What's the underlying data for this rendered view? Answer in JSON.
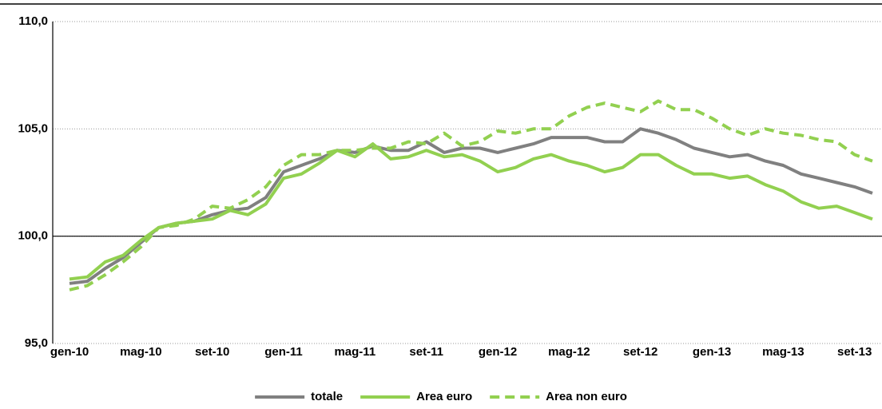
{
  "chart_data": {
    "type": "line",
    "categories": [
      "gen-10",
      null,
      null,
      null,
      "mag-10",
      null,
      null,
      null,
      "set-10",
      null,
      null,
      null,
      "gen-11",
      null,
      null,
      null,
      "mag-11",
      null,
      null,
      null,
      "set-11",
      null,
      null,
      null,
      "gen-12",
      null,
      null,
      null,
      "mag-12",
      null,
      null,
      null,
      "set-12",
      null,
      null,
      null,
      "gen-13",
      null,
      null,
      null,
      "mag-13",
      null,
      null,
      null,
      "set-13",
      null
    ],
    "series": [
      {
        "name": "totale",
        "color": "#808080",
        "dashed": false,
        "values": [
          97.8,
          97.9,
          98.5,
          99.0,
          99.7,
          100.4,
          100.6,
          100.7,
          101.0,
          101.2,
          101.3,
          101.8,
          103.0,
          103.3,
          103.6,
          104.0,
          103.9,
          104.2,
          104.0,
          104.0,
          104.4,
          103.9,
          104.1,
          104.1,
          103.9,
          104.1,
          104.3,
          104.6,
          104.6,
          104.6,
          104.4,
          104.4,
          105.0,
          104.8,
          104.5,
          104.1,
          103.9,
          103.7,
          103.8,
          103.5,
          103.3,
          102.9,
          102.7,
          102.5,
          102.3,
          102.0
        ]
      },
      {
        "name": "Area euro",
        "color": "#92d050",
        "dashed": false,
        "values": [
          98.0,
          98.1,
          98.8,
          99.1,
          99.8,
          100.4,
          100.6,
          100.7,
          100.8,
          101.2,
          101.0,
          101.5,
          102.7,
          102.9,
          103.4,
          104.0,
          103.7,
          104.3,
          103.6,
          103.7,
          104.0,
          103.7,
          103.8,
          103.5,
          103.0,
          103.2,
          103.6,
          103.8,
          103.5,
          103.3,
          103.0,
          103.2,
          103.8,
          103.8,
          103.3,
          102.9,
          102.9,
          102.7,
          102.8,
          102.4,
          102.1,
          101.6,
          101.3,
          101.4,
          101.1,
          100.8
        ]
      },
      {
        "name": "Area non euro",
        "color": "#92d050",
        "dashed": true,
        "values": [
          97.5,
          97.7,
          98.2,
          98.8,
          99.5,
          100.4,
          100.5,
          100.8,
          101.4,
          101.3,
          101.7,
          102.3,
          103.3,
          103.8,
          103.8,
          104.0,
          104.0,
          104.1,
          104.1,
          104.4,
          104.3,
          104.8,
          104.2,
          104.4,
          104.9,
          104.8,
          105.0,
          105.0,
          105.6,
          106.0,
          106.2,
          106.0,
          105.8,
          106.3,
          105.9,
          105.9,
          105.5,
          105.0,
          104.7,
          105.0,
          104.8,
          104.7,
          104.5,
          104.4,
          103.8,
          103.5
        ]
      }
    ],
    "ylim": [
      95,
      110
    ],
    "yticks": [
      {
        "value": 95,
        "label": "95,0"
      },
      {
        "value": 100,
        "label": "100,0"
      },
      {
        "value": 105,
        "label": "105,0"
      },
      {
        "value": 110,
        "label": "110,0"
      }
    ],
    "x_axis_crosses_at": 100,
    "grid": true,
    "legend": "bottom"
  }
}
